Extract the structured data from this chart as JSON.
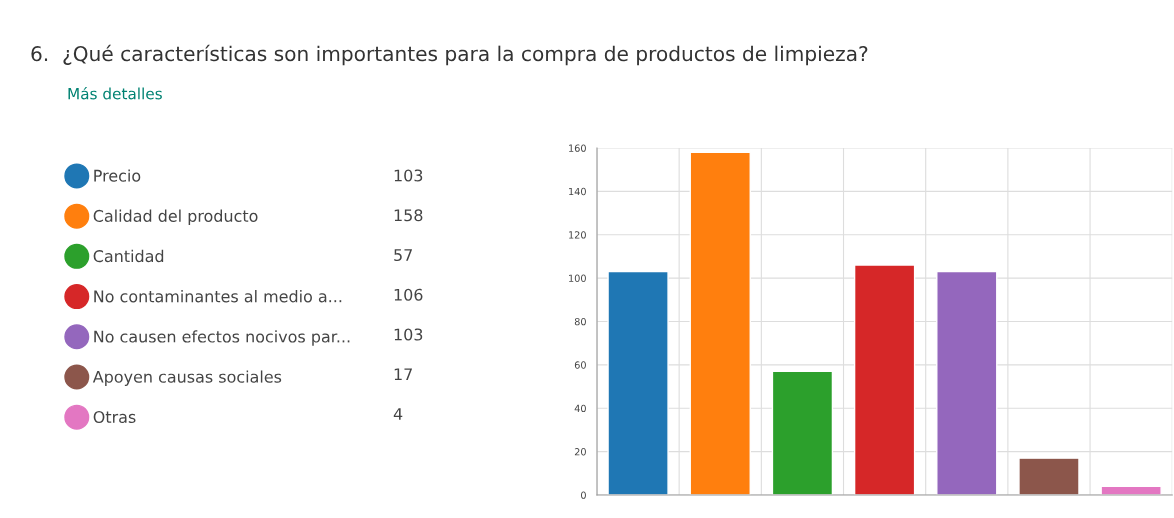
{
  "chart_data": {
    "type": "bar",
    "title": "6.  ¿Qué características son importantes para la compra de productos de limpieza?",
    "annotations": [
      "Más detalles",
      "103",
      "158",
      "57",
      "106",
      "103",
      "17",
      "4"
    ],
    "categories": [
      null,
      null,
      null,
      null,
      null,
      null,
      null
    ],
    "series": [
      {
        "name": "Precio",
        "color": "#1f77b4",
        "values": [
          103,
          null,
          null,
          null,
          null,
          null,
          null
        ]
      },
      {
        "name": "Calidad del producto",
        "color": "#ff7f0e",
        "values": [
          null,
          158,
          null,
          null,
          null,
          null,
          null
        ]
      },
      {
        "name": "Cantidad",
        "color": "#2ca02c",
        "values": [
          null,
          null,
          57,
          null,
          null,
          null,
          null
        ]
      },
      {
        "name": "No contaminantes al medio a...",
        "color": "#d62728",
        "values": [
          null,
          null,
          null,
          106,
          null,
          null,
          null
        ]
      },
      {
        "name": "No causen efectos nocivos par...",
        "color": "#9467bd",
        "values": [
          null,
          null,
          null,
          null,
          103,
          null,
          null
        ]
      },
      {
        "name": "Apoyen causas sociales",
        "color": "#8c564b",
        "values": [
          null,
          null,
          null,
          null,
          null,
          17,
          null
        ]
      },
      {
        "name": "Otras",
        "color": "#e377c2",
        "values": [
          null,
          null,
          null,
          null,
          null,
          null,
          4
        ]
      }
    ],
    "ylim": [
      0,
      160
    ],
    "yticks": [
      0,
      20,
      40,
      60,
      80,
      100,
      120,
      140,
      160
    ],
    "grid": true,
    "legend": "left"
  }
}
